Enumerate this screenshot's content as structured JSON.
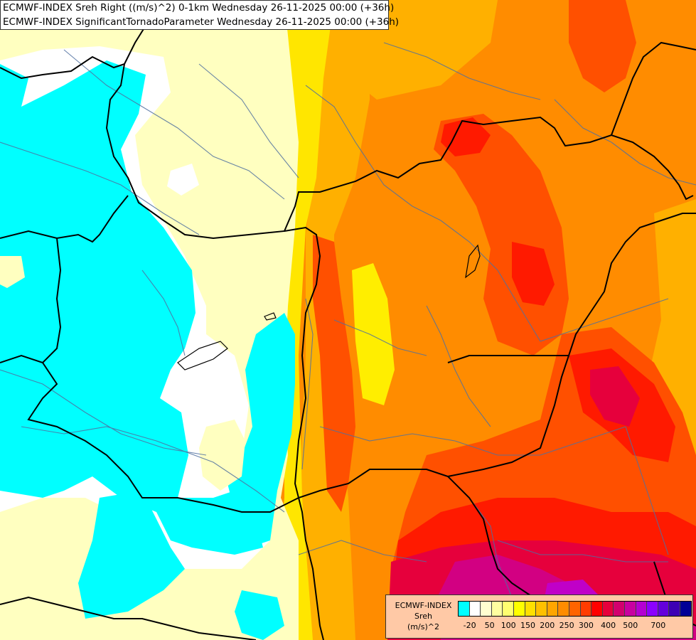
{
  "title": {
    "line1": "ECMWF-INDEX Sreh Right ((m/s)^2) 0-1km Wednesday 26-11-2025 00:00 (+36h)",
    "line2": "ECMWF-INDEX SignificantTornadoParameter Wednesday 26-11-2025 00:00 (+36h)"
  },
  "legend": {
    "label_line1": "ECMWF-INDEX",
    "label_line2": "Sreh",
    "label_line3": "(m/s)^2",
    "colors": [
      "#00ffff",
      "#ffffff",
      "#ffffd0",
      "#ffffa0",
      "#ffff70",
      "#ffff00",
      "#ffe000",
      "#ffc000",
      "#ffa500",
      "#ff8c00",
      "#ff6400",
      "#ff3c00",
      "#ff0000",
      "#e6003c",
      "#d2006e",
      "#c800a0",
      "#b400d2",
      "#8c00ff",
      "#6400dc",
      "#3c00b4",
      "#000096"
    ],
    "ticks": [
      "-20",
      "50",
      "100",
      "150",
      "200",
      "250",
      "300",
      "400",
      "500",
      "700"
    ]
  },
  "colors": {
    "cyan": "#00ffff",
    "white": "#ffffff",
    "pale_yellow": "#ffffc0",
    "yellow": "#ffff00",
    "gold": "#ffc000",
    "orange": "#ffa000",
    "dark_orange": "#ff8000",
    "red_orange": "#ff5000",
    "red": "#ff1a00",
    "crimson": "#e6003c",
    "magenta": "#d20082",
    "purple": "#c000c8"
  }
}
